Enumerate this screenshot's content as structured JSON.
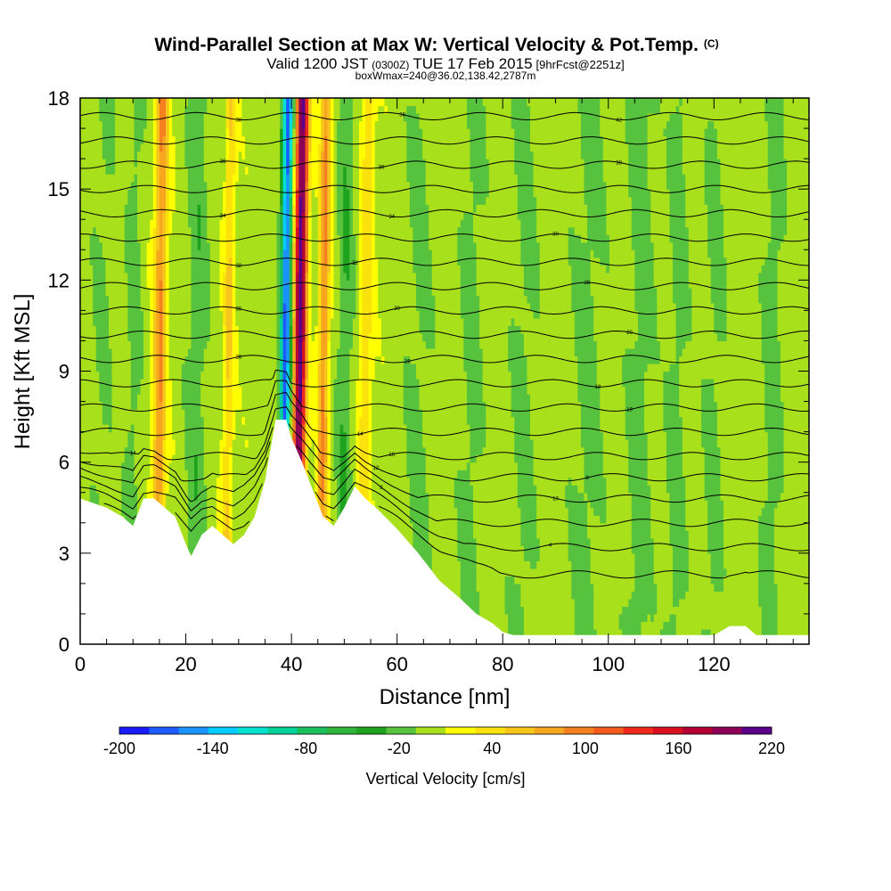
{
  "header": {
    "title": "Wind-Parallel Section at Max W: Vertical Velocity & Pot.Temp.",
    "copyright": "(C)",
    "valid_prefix": "Valid 1200 JST",
    "valid_utc": "(0300Z)",
    "valid_date": "TUE 17 Feb 2015",
    "forecast": "[9hrFcst@2251z]",
    "box_info": "boxWmax=240@36.02,138.42,2787m"
  },
  "chart_data": {
    "type": "heatmap",
    "xlabel": "Distance [nm]",
    "ylabel": "Height [Kft MSL]",
    "xlim": [
      0,
      138
    ],
    "ylim": [
      0,
      18
    ],
    "x_ticks": [
      "0",
      "20",
      "40",
      "60",
      "80",
      "100",
      "120"
    ],
    "y_ticks": [
      "0",
      "3",
      "6",
      "9",
      "12",
      "15",
      "18"
    ],
    "x_tick_values": [
      0,
      20,
      40,
      60,
      80,
      100,
      120
    ],
    "y_tick_values": [
      0,
      3,
      6,
      9,
      12,
      15,
      18
    ],
    "terrain_kft": [
      [
        0,
        4.8
      ],
      [
        5,
        4.5
      ],
      [
        8,
        4.2
      ],
      [
        10,
        3.9
      ],
      [
        12,
        4.8
      ],
      [
        14,
        4.8
      ],
      [
        16,
        4.5
      ],
      [
        18,
        4.2
      ],
      [
        20,
        3.3
      ],
      [
        21,
        2.9
      ],
      [
        23,
        3.6
      ],
      [
        25,
        3.9
      ],
      [
        27,
        3.6
      ],
      [
        29,
        3.3
      ],
      [
        31,
        3.6
      ],
      [
        33,
        4.2
      ],
      [
        35,
        5.4
      ],
      [
        37,
        7.4
      ],
      [
        39,
        7.4
      ],
      [
        40,
        6.8
      ],
      [
        42,
        6.0
      ],
      [
        44,
        5.1
      ],
      [
        46,
        4.2
      ],
      [
        48,
        3.9
      ],
      [
        50,
        4.5
      ],
      [
        52,
        5.2
      ],
      [
        54,
        4.8
      ],
      [
        56,
        4.5
      ],
      [
        60,
        3.8
      ],
      [
        64,
        3.0
      ],
      [
        68,
        2.1
      ],
      [
        72,
        1.5
      ],
      [
        75,
        1.0
      ],
      [
        78,
        0.7
      ],
      [
        80,
        0.4
      ],
      [
        82,
        0.3
      ],
      [
        85,
        0.3
      ],
      [
        100,
        0.3
      ],
      [
        120,
        0.3
      ],
      [
        123,
        0.6
      ],
      [
        126,
        0.6
      ],
      [
        128,
        0.3
      ],
      [
        138,
        0.3
      ]
    ],
    "w_bands": [
      {
        "x": 15,
        "w": 1.2,
        "amp": 90
      },
      {
        "x": 28,
        "w": 1.0,
        "amp": 50
      },
      {
        "x": 38.8,
        "w": 1.0,
        "amp": -180
      },
      {
        "x": 41.5,
        "w": 1.2,
        "amp": 220
      },
      {
        "x": 46,
        "w": 1.0,
        "amp": 90
      },
      {
        "x": 50,
        "w": 1.5,
        "amp": -30
      },
      {
        "x": 54,
        "w": 1.3,
        "amp": 40
      },
      {
        "x": 22,
        "w": 2.0,
        "amp": -25
      },
      {
        "x": 10,
        "w": 1.5,
        "amp": -20
      },
      {
        "x": 4,
        "w": 2.0,
        "amp": -15
      },
      {
        "x": 64,
        "w": 2.5,
        "amp": -18
      },
      {
        "x": 74,
        "w": 2.2,
        "amp": -20
      },
      {
        "x": 84,
        "w": 2.5,
        "amp": -18
      },
      {
        "x": 96,
        "w": 3.0,
        "amp": -20
      },
      {
        "x": 106,
        "w": 2.5,
        "amp": -22
      },
      {
        "x": 113,
        "w": 2.0,
        "amp": -20
      },
      {
        "x": 120,
        "w": 2.0,
        "amp": -18
      },
      {
        "x": 131,
        "w": 2.0,
        "amp": -22
      }
    ],
    "contour_levels_kft": [
      2.3,
      3.2,
      4.0,
      4.8,
      5.5,
      6.2,
      7.0,
      7.8,
      8.6,
      9.4,
      10.2,
      11.0,
      11.8,
      12.6,
      13.4,
      14.2,
      15.0,
      15.8,
      16.6,
      17.4
    ],
    "contour_labels": [
      {
        "x": 10,
        "level": 5,
        "text": "14"
      },
      {
        "x": 57,
        "level": 2,
        "text": "8"
      },
      {
        "x": 56,
        "level": 4,
        "text": "12"
      },
      {
        "x": 53,
        "level": 6,
        "text": "14"
      },
      {
        "x": 59,
        "level": 5,
        "text": "16"
      },
      {
        "x": 90,
        "level": 3,
        "text": "10"
      },
      {
        "x": 96,
        "level": 4,
        "text": "8"
      },
      {
        "x": 89,
        "level": 1,
        "text": "4"
      },
      {
        "x": 30,
        "level": 9,
        "text": "28"
      },
      {
        "x": 30,
        "level": 11,
        "text": "30"
      },
      {
        "x": 30,
        "level": 13,
        "text": "32"
      },
      {
        "x": 27,
        "level": 15,
        "text": "34"
      },
      {
        "x": 27,
        "level": 17,
        "text": "36"
      },
      {
        "x": 30,
        "level": 19,
        "text": "38"
      },
      {
        "x": 62,
        "level": 9,
        "text": "26"
      },
      {
        "x": 60,
        "level": 11,
        "text": "30"
      },
      {
        "x": 52,
        "level": 13,
        "text": "32"
      },
      {
        "x": 59,
        "level": 15,
        "text": "34"
      },
      {
        "x": 57,
        "level": 17,
        "text": "36"
      },
      {
        "x": 61,
        "level": 19,
        "text": "38"
      },
      {
        "x": 90,
        "level": 14,
        "text": "30"
      },
      {
        "x": 96,
        "level": 12,
        "text": "28"
      },
      {
        "x": 104,
        "level": 10,
        "text": "20"
      },
      {
        "x": 98,
        "level": 8,
        "text": "18"
      },
      {
        "x": 104,
        "level": 7,
        "text": "16"
      },
      {
        "x": 102,
        "level": 17,
        "text": "38"
      },
      {
        "x": 102,
        "level": 19,
        "text": "42"
      }
    ],
    "colorbar": {
      "label": "Vertical Velocity [cm/s]",
      "levels": [
        -200,
        -180,
        -160,
        -140,
        -120,
        -100,
        -80,
        -60,
        -40,
        -20,
        0,
        20,
        40,
        60,
        80,
        100,
        120,
        140,
        160,
        180,
        200,
        220
      ],
      "colors": [
        "#1a1aff",
        "#1e5bff",
        "#1b93ff",
        "#00cdff",
        "#00e1d1",
        "#00d39a",
        "#19c05c",
        "#2fb43b",
        "#1fa31f",
        "#57c23e",
        "#a8e01c",
        "#ffff00",
        "#fbe20c",
        "#f7c61d",
        "#f6a71f",
        "#f58020",
        "#f25a1e",
        "#ef2a1d",
        "#d9101f",
        "#b50033",
        "#8c0057",
        "#5a008a"
      ],
      "tick_labels": [
        "-200",
        "-140",
        "-80",
        "-20",
        "40",
        "100",
        "160",
        "220"
      ],
      "tick_values": [
        -200,
        -140,
        -80,
        -20,
        40,
        100,
        160,
        220
      ]
    }
  }
}
